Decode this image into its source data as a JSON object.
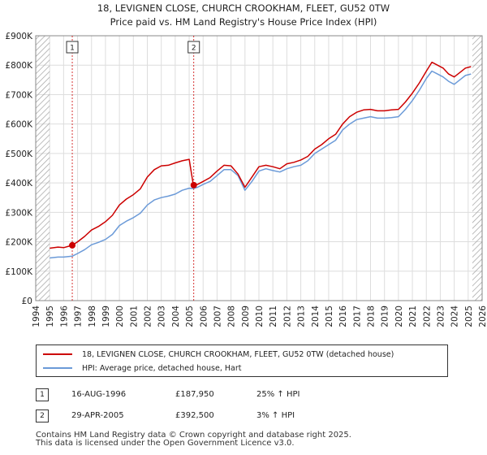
{
  "chart_data": {
    "type": "line",
    "title": "18, LEVIGNEN CLOSE, CHURCH CROOKHAM, FLEET, GU52 0TW",
    "subtitle": "Price paid vs. HM Land Registry's House Price Index (HPI)",
    "xlabel": "",
    "ylabel": "",
    "xlim": [
      1994,
      2026
    ],
    "ylim": [
      0,
      900000
    ],
    "grid": true,
    "x_ticks": [
      "1994",
      "1995",
      "1996",
      "1997",
      "1998",
      "1999",
      "2000",
      "2001",
      "2002",
      "2003",
      "2004",
      "2005",
      "2006",
      "2007",
      "2008",
      "2009",
      "2010",
      "2011",
      "2012",
      "2013",
      "2014",
      "2015",
      "2016",
      "2017",
      "2018",
      "2019",
      "2020",
      "2021",
      "2022",
      "2023",
      "2024",
      "2025",
      "2026"
    ],
    "y_ticks": [
      {
        "value": 0,
        "label": "£0"
      },
      {
        "value": 100000,
        "label": "£100K"
      },
      {
        "value": 200000,
        "label": "£200K"
      },
      {
        "value": 300000,
        "label": "£300K"
      },
      {
        "value": 400000,
        "label": "£400K"
      },
      {
        "value": 500000,
        "label": "£500K"
      },
      {
        "value": 600000,
        "label": "£600K"
      },
      {
        "value": 700000,
        "label": "£700K"
      },
      {
        "value": 800000,
        "label": "£800K"
      },
      {
        "value": 900000,
        "label": "£900K"
      }
    ],
    "data_start": 1995.0,
    "data_end": 2025.3,
    "series": [
      {
        "name": "18, LEVIGNEN CLOSE, CHURCH CROOKHAM, FLEET, GU52 0TW (detached house)",
        "color": "#cc0000",
        "points": [
          [
            1995.0,
            178000
          ],
          [
            1995.6,
            182000
          ],
          [
            1996.0,
            180000
          ],
          [
            1996.62,
            187950
          ],
          [
            1997.0,
            200000
          ],
          [
            1997.5,
            218000
          ],
          [
            1998.0,
            240000
          ],
          [
            1998.5,
            252000
          ],
          [
            1999.0,
            268000
          ],
          [
            1999.5,
            290000
          ],
          [
            2000.0,
            325000
          ],
          [
            2000.5,
            345000
          ],
          [
            2001.0,
            360000
          ],
          [
            2001.5,
            380000
          ],
          [
            2002.0,
            420000
          ],
          [
            2002.5,
            445000
          ],
          [
            2003.0,
            458000
          ],
          [
            2003.5,
            460000
          ],
          [
            2004.0,
            468000
          ],
          [
            2004.5,
            475000
          ],
          [
            2005.0,
            480000
          ],
          [
            2005.3,
            392500
          ],
          [
            2005.6,
            395000
          ],
          [
            2006.0,
            405000
          ],
          [
            2006.5,
            418000
          ],
          [
            2007.0,
            440000
          ],
          [
            2007.5,
            460000
          ],
          [
            2008.0,
            458000
          ],
          [
            2008.5,
            430000
          ],
          [
            2009.0,
            385000
          ],
          [
            2009.5,
            420000
          ],
          [
            2010.0,
            455000
          ],
          [
            2010.5,
            460000
          ],
          [
            2011.0,
            455000
          ],
          [
            2011.5,
            448000
          ],
          [
            2012.0,
            465000
          ],
          [
            2012.5,
            470000
          ],
          [
            2013.0,
            478000
          ],
          [
            2013.5,
            490000
          ],
          [
            2014.0,
            515000
          ],
          [
            2014.5,
            530000
          ],
          [
            2015.0,
            550000
          ],
          [
            2015.5,
            565000
          ],
          [
            2016.0,
            600000
          ],
          [
            2016.5,
            625000
          ],
          [
            2017.0,
            640000
          ],
          [
            2017.5,
            648000
          ],
          [
            2018.0,
            650000
          ],
          [
            2018.5,
            645000
          ],
          [
            2019.0,
            645000
          ],
          [
            2019.5,
            648000
          ],
          [
            2020.0,
            650000
          ],
          [
            2020.5,
            675000
          ],
          [
            2021.0,
            705000
          ],
          [
            2021.5,
            740000
          ],
          [
            2022.0,
            780000
          ],
          [
            2022.4,
            810000
          ],
          [
            2022.8,
            800000
          ],
          [
            2023.2,
            790000
          ],
          [
            2023.6,
            770000
          ],
          [
            2024.0,
            760000
          ],
          [
            2024.4,
            775000
          ],
          [
            2024.8,
            790000
          ],
          [
            2025.2,
            795000
          ]
        ]
      },
      {
        "name": "HPI: Average price, detached house, Hart",
        "color": "#6b9ad8",
        "points": [
          [
            1995.0,
            145000
          ],
          [
            1995.6,
            148000
          ],
          [
            1996.0,
            148000
          ],
          [
            1996.62,
            151000
          ],
          [
            1997.0,
            160000
          ],
          [
            1997.5,
            173000
          ],
          [
            1998.0,
            190000
          ],
          [
            1998.5,
            198000
          ],
          [
            1999.0,
            208000
          ],
          [
            1999.5,
            225000
          ],
          [
            2000.0,
            255000
          ],
          [
            2000.5,
            270000
          ],
          [
            2001.0,
            282000
          ],
          [
            2001.5,
            297000
          ],
          [
            2002.0,
            325000
          ],
          [
            2002.5,
            342000
          ],
          [
            2003.0,
            350000
          ],
          [
            2003.5,
            355000
          ],
          [
            2004.0,
            362000
          ],
          [
            2004.5,
            375000
          ],
          [
            2005.0,
            382000
          ],
          [
            2005.3,
            381000
          ],
          [
            2005.6,
            385000
          ],
          [
            2006.0,
            395000
          ],
          [
            2006.5,
            405000
          ],
          [
            2007.0,
            425000
          ],
          [
            2007.5,
            445000
          ],
          [
            2008.0,
            445000
          ],
          [
            2008.5,
            425000
          ],
          [
            2009.0,
            375000
          ],
          [
            2009.5,
            405000
          ],
          [
            2010.0,
            440000
          ],
          [
            2010.5,
            448000
          ],
          [
            2011.0,
            442000
          ],
          [
            2011.5,
            437000
          ],
          [
            2012.0,
            448000
          ],
          [
            2012.5,
            455000
          ],
          [
            2013.0,
            460000
          ],
          [
            2013.5,
            475000
          ],
          [
            2014.0,
            500000
          ],
          [
            2014.5,
            515000
          ],
          [
            2015.0,
            530000
          ],
          [
            2015.5,
            545000
          ],
          [
            2016.0,
            580000
          ],
          [
            2016.5,
            600000
          ],
          [
            2017.0,
            615000
          ],
          [
            2017.5,
            620000
          ],
          [
            2018.0,
            625000
          ],
          [
            2018.5,
            620000
          ],
          [
            2019.0,
            620000
          ],
          [
            2019.5,
            622000
          ],
          [
            2020.0,
            625000
          ],
          [
            2020.5,
            650000
          ],
          [
            2021.0,
            680000
          ],
          [
            2021.5,
            715000
          ],
          [
            2022.0,
            755000
          ],
          [
            2022.4,
            780000
          ],
          [
            2022.8,
            770000
          ],
          [
            2023.2,
            760000
          ],
          [
            2023.6,
            745000
          ],
          [
            2024.0,
            735000
          ],
          [
            2024.4,
            750000
          ],
          [
            2024.8,
            765000
          ],
          [
            2025.2,
            770000
          ]
        ]
      }
    ],
    "sale_markers": [
      {
        "label": "1",
        "x": 1996.62,
        "y": 187950
      },
      {
        "label": "2",
        "x": 2005.33,
        "y": 392500
      }
    ]
  },
  "legend": {
    "property": "18, LEVIGNEN CLOSE, CHURCH CROOKHAM, FLEET, GU52 0TW (detached house)",
    "hpi": "HPI: Average price, detached house, Hart"
  },
  "colors": {
    "property": "#cc0000",
    "hpi": "#6b9ad8",
    "hatch": "#9a9a9a",
    "grid": "#dddddd",
    "plot_bg": "#ffffff"
  },
  "sales": [
    {
      "num": "1",
      "date": "16-AUG-1996",
      "price": "£187,950",
      "hpi": "25% ↑ HPI"
    },
    {
      "num": "2",
      "date": "29-APR-2005",
      "price": "£392,500",
      "hpi": "3% ↑ HPI"
    }
  ],
  "footer": {
    "line1": "Contains HM Land Registry data © Crown copyright and database right 2025.",
    "line2": "This data is licensed under the Open Government Licence v3.0."
  }
}
